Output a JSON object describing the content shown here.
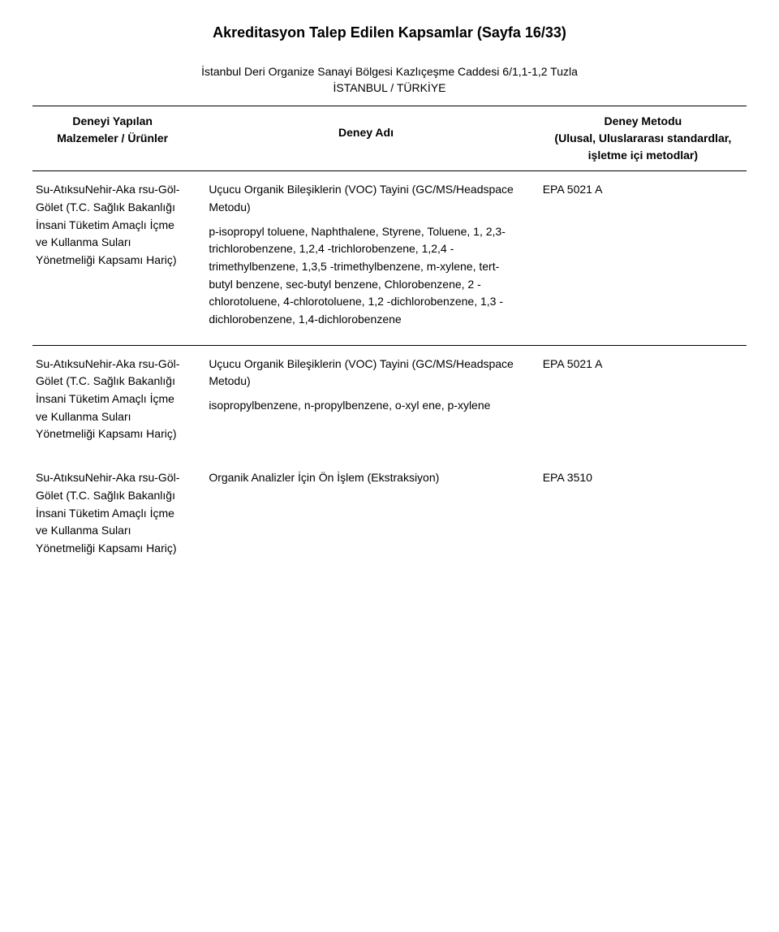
{
  "page_title": "Akreditasyon Talep Edilen Kapsamlar (Sayfa 16/33)",
  "org_line1": "İstanbul Deri Organize Sanayi Bölgesi  Kazlıçeşme Caddesi 6/1,1-1,2  Tuzla",
  "org_line2": "İSTANBUL / TÜRKİYE",
  "header": {
    "left_l1": "Deneyi Yapılan",
    "left_l2": "Malzemeler / Ürünler",
    "mid": "Deney Adı",
    "right_l1": "Deney Metodu",
    "right_l2": "(Ulusal, Uluslararası standardlar,",
    "right_l3": "işletme içi metodlar)"
  },
  "rows": [
    {
      "left": "Su-AtıksuNehir-Aka rsu-Göl-Gölet (T.C. Sağlık Bakanlığı İnsani Tüketim Amaçlı İçme ve Kullanma Suları Yönetmeliği Kapsamı Hariç)",
      "mid_title": "Uçucu Organik Bileşiklerin (VOC) Tayini (GC/MS/Headspace Metodu)",
      "mid_body": "p-isopropyl toluene, Naphthalene, Styrene, Toluene, 1, 2,3-trichlorobenzene, 1,2,4 -trichlorobenzene, 1,2,4 -trimethylbenzene, 1,3,5 -trimethylbenzene, m-xylene, tert-butyl benzene, sec-butyl benzene, Chlorobenzene, 2 -chlorotoluene, 4-chlorotoluene, 1,2 -dichlorobenzene, 1,3 -dichlorobenzene, 1,4-dichlorobenzene",
      "right": "EPA 5021 A"
    },
    {
      "left": "Su-AtıksuNehir-Aka rsu-Göl-Gölet (T.C. Sağlık Bakanlığı İnsani Tüketim Amaçlı İçme ve Kullanma Suları Yönetmeliği Kapsamı Hariç)",
      "mid_title": "Uçucu Organik Bileşiklerin (VOC) Tayini (GC/MS/Headspace Metodu)",
      "mid_body": "isopropylbenzene, n-propylbenzene, o-xyl ene, p-xylene",
      "right": "EPA 5021 A"
    },
    {
      "left": "Su-AtıksuNehir-Aka rsu-Göl-Gölet (T.C. Sağlık Bakanlığı İnsani Tüketim Amaçlı İçme ve Kullanma Suları Yönetmeliği Kapsamı Hariç)",
      "mid_title": "Organik Analizler İçin Ön İşlem (Ekstraksiyon)",
      "mid_body": "",
      "right": "EPA 3510"
    }
  ]
}
